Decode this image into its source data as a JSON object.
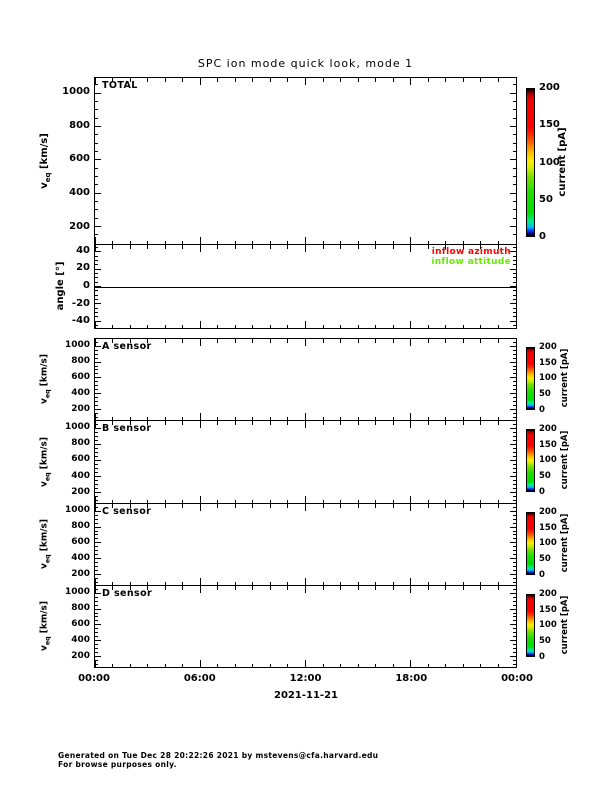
{
  "title": "SPC ion mode quick look, mode 1",
  "x_axis": {
    "ticks": [
      "00:00",
      "06:00",
      "12:00",
      "18:00",
      "00:00"
    ],
    "date": "2021-11-21"
  },
  "colorbar": {
    "label": "current [pA]",
    "ticks": [
      "0",
      "50",
      "100",
      "150",
      "200"
    ],
    "range": [
      0,
      200
    ],
    "colors_bottom_to_top": [
      "#000000",
      "#0033ff",
      "#00bbff",
      "#00dd00",
      "#ccee00",
      "#ffee00",
      "#ff7700",
      "#ff0000",
      "#000000"
    ]
  },
  "panels": {
    "total": {
      "label": "TOTAL",
      "ylabel": {
        "base": "v",
        "sub": "eq",
        "unit": " [km/s]"
      },
      "yticks": [
        "200",
        "400",
        "600",
        "800",
        "1000"
      ]
    },
    "angle": {
      "label": "",
      "ylabel": "angle [°]",
      "yticks": [
        "-40",
        "-20",
        "0",
        "20",
        "40"
      ],
      "legend": [
        {
          "label": "inflow azimuth",
          "color": "#ff0000"
        },
        {
          "label": "inflow attitude",
          "color": "#66ee00"
        }
      ]
    },
    "a": {
      "label": "A sensor",
      "ylabel": {
        "base": "v",
        "sub": "eq",
        "unit": " [km/s]"
      },
      "yticks": [
        "200",
        "400",
        "600",
        "800",
        "1000"
      ]
    },
    "b": {
      "label": "B sensor",
      "ylabel": {
        "base": "v",
        "sub": "eq",
        "unit": " [km/s]"
      },
      "yticks": [
        "200",
        "400",
        "600",
        "800",
        "1000"
      ]
    },
    "c": {
      "label": "C sensor",
      "ylabel": {
        "base": "v",
        "sub": "eq",
        "unit": " [km/s]"
      },
      "yticks": [
        "200",
        "400",
        "600",
        "800",
        "1000"
      ]
    },
    "d": {
      "label": "D sensor",
      "ylabel": {
        "base": "v",
        "sub": "eq",
        "unit": " [km/s]"
      },
      "yticks": [
        "200",
        "400",
        "600",
        "800",
        "1000"
      ]
    }
  },
  "footer": {
    "line1": "Generated on Tue Dec 28 20:22:26 2021 by mstevens@cfa.harvard.edu",
    "line2": "For browse purposes only."
  },
  "chart_data": [
    {
      "type": "heatmap",
      "title": "TOTAL",
      "ylabel": "v_eq [km/s]",
      "xlabel": "time on 2021-11-21",
      "ylim": [
        100,
        1090
      ],
      "y_ticks": [
        200,
        400,
        600,
        800,
        1000
      ],
      "x_ticks": [
        "00:00",
        "06:00",
        "12:00",
        "18:00",
        "00:00"
      ],
      "xlim_hours": [
        0,
        24
      ],
      "colorbar": {
        "label": "current [pA]",
        "range": [
          0,
          200
        ],
        "ticks": [
          0,
          50,
          100,
          150,
          200
        ]
      },
      "series": [],
      "note": "empty quick-look, no data plotted"
    },
    {
      "type": "line",
      "title": "inflow angles",
      "ylabel": "angle [°]",
      "ylim": [
        -48,
        48
      ],
      "y_ticks": [
        -40,
        -20,
        0,
        20,
        40
      ],
      "xlim_hours": [
        0,
        24
      ],
      "series": [
        {
          "name": "inflow azimuth",
          "color": "#ff0000",
          "values": []
        },
        {
          "name": "inflow attitude",
          "color": "#66ee00",
          "values": []
        }
      ],
      "annotations": [
        "horizontal line at 0"
      ],
      "legend_position": "top-right",
      "note": "empty quick-look, no data plotted"
    },
    {
      "type": "heatmap",
      "title": "A sensor",
      "ylabel": "v_eq [km/s]",
      "ylim": [
        100,
        1090
      ],
      "y_ticks": [
        200,
        400,
        600,
        800,
        1000
      ],
      "xlim_hours": [
        0,
        24
      ],
      "colorbar": {
        "label": "current [pA]",
        "range": [
          0,
          200
        ],
        "ticks": [
          0,
          50,
          100,
          150,
          200
        ]
      },
      "series": [],
      "note": "empty quick-look, no data plotted"
    },
    {
      "type": "heatmap",
      "title": "B sensor",
      "ylabel": "v_eq [km/s]",
      "ylim": [
        100,
        1090
      ],
      "y_ticks": [
        200,
        400,
        600,
        800,
        1000
      ],
      "xlim_hours": [
        0,
        24
      ],
      "colorbar": {
        "label": "current [pA]",
        "range": [
          0,
          200
        ],
        "ticks": [
          0,
          50,
          100,
          150,
          200
        ]
      },
      "series": [],
      "note": "empty quick-look, no data plotted"
    },
    {
      "type": "heatmap",
      "title": "C sensor",
      "ylabel": "v_eq [km/s]",
      "ylim": [
        100,
        1090
      ],
      "y_ticks": [
        200,
        400,
        600,
        800,
        1000
      ],
      "xlim_hours": [
        0,
        24
      ],
      "colorbar": {
        "label": "current [pA]",
        "range": [
          0,
          200
        ],
        "ticks": [
          0,
          50,
          100,
          150,
          200
        ]
      },
      "series": [],
      "note": "empty quick-look, no data plotted"
    },
    {
      "type": "heatmap",
      "title": "D sensor",
      "ylabel": "v_eq [km/s]",
      "ylim": [
        100,
        1090
      ],
      "y_ticks": [
        200,
        400,
        600,
        800,
        1000
      ],
      "xlim_hours": [
        0,
        24
      ],
      "colorbar": {
        "label": "current [pA]",
        "range": [
          0,
          200
        ],
        "ticks": [
          0,
          50,
          100,
          150,
          200
        ]
      },
      "series": [],
      "note": "empty quick-look, no data plotted"
    }
  ]
}
